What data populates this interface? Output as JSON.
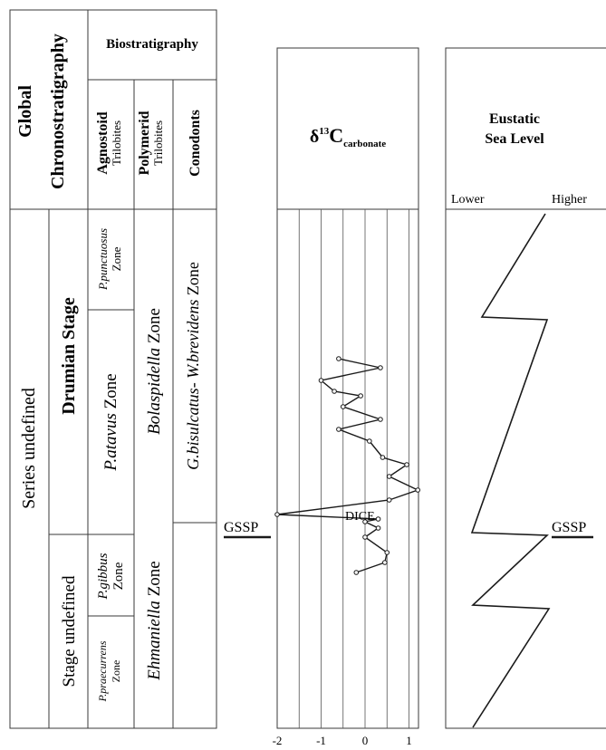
{
  "chrono": {
    "heading_global": "Global",
    "heading_chrono": "Chronostratigraphy",
    "series": "Series undefined",
    "stage_upper": "Drumian Stage",
    "stage_lower": "Stage undefined"
  },
  "bio": {
    "heading": "Biostratigraphy",
    "agnostoid_title": "Agnostoid",
    "agnostoid_sub": "Trilobites",
    "polymerid_title": "Polymerid",
    "polymerid_sub": "Trilobites",
    "conodonts_title": "Conodonts",
    "agnostoid_zones": [
      {
        "name": "P.punctuosus",
        "suffix": "Zone"
      },
      {
        "name": "P.atavus",
        "suffix": "Zone"
      },
      {
        "name": "P.gibbus",
        "suffix": "Zone"
      },
      {
        "name": "P.praecurrens",
        "suffix": "Zone"
      }
    ],
    "polymerid_zones": [
      {
        "name": "Bolaspidella",
        "suffix": "Zone"
      },
      {
        "name": "Ehmaniella",
        "suffix": "Zone"
      }
    ],
    "conodont_zones": [
      {
        "name": "G.bisulcatus- W.brevidens",
        "suffix": "Zone"
      }
    ]
  },
  "isotope": {
    "title_delta": "δ",
    "title_sup": "13",
    "title_main": "C",
    "title_sub": "carbonate",
    "gssp_label": "GSSP",
    "event_label": "DICE",
    "axis_ticks": [
      "-2",
      "-1",
      "0",
      "1"
    ]
  },
  "sealevel": {
    "title_line1": "Eustatic",
    "title_line2": "Sea Level",
    "lower_label": "Lower",
    "higher_label": "Higher",
    "gssp_label": "GSSP"
  },
  "chart_data": {
    "type": "line",
    "xlim": [
      -2,
      1.4
    ],
    "ticks": [
      -2,
      -1,
      0,
      1
    ],
    "grid": true,
    "series": [
      {
        "points": [
          [
            -0.6,
            396
          ],
          [
            0.35,
            406
          ],
          [
            -1.0,
            420
          ],
          [
            -0.7,
            432
          ],
          [
            -0.1,
            437
          ],
          [
            -0.5,
            449
          ],
          [
            0.35,
            463
          ],
          [
            -0.6,
            474
          ],
          [
            0.1,
            487
          ],
          [
            0.4,
            505
          ],
          [
            0.95,
            513
          ],
          [
            0.55,
            526
          ],
          [
            1.2,
            541
          ],
          [
            0.55,
            552
          ],
          [
            -2.0,
            568
          ],
          [
            0.3,
            573
          ],
          [
            0.0,
            576
          ],
          [
            0.3,
            583
          ],
          [
            0.0,
            593
          ],
          [
            0.5,
            610
          ],
          [
            0.45,
            621
          ],
          [
            -0.2,
            632
          ]
        ]
      }
    ]
  }
}
